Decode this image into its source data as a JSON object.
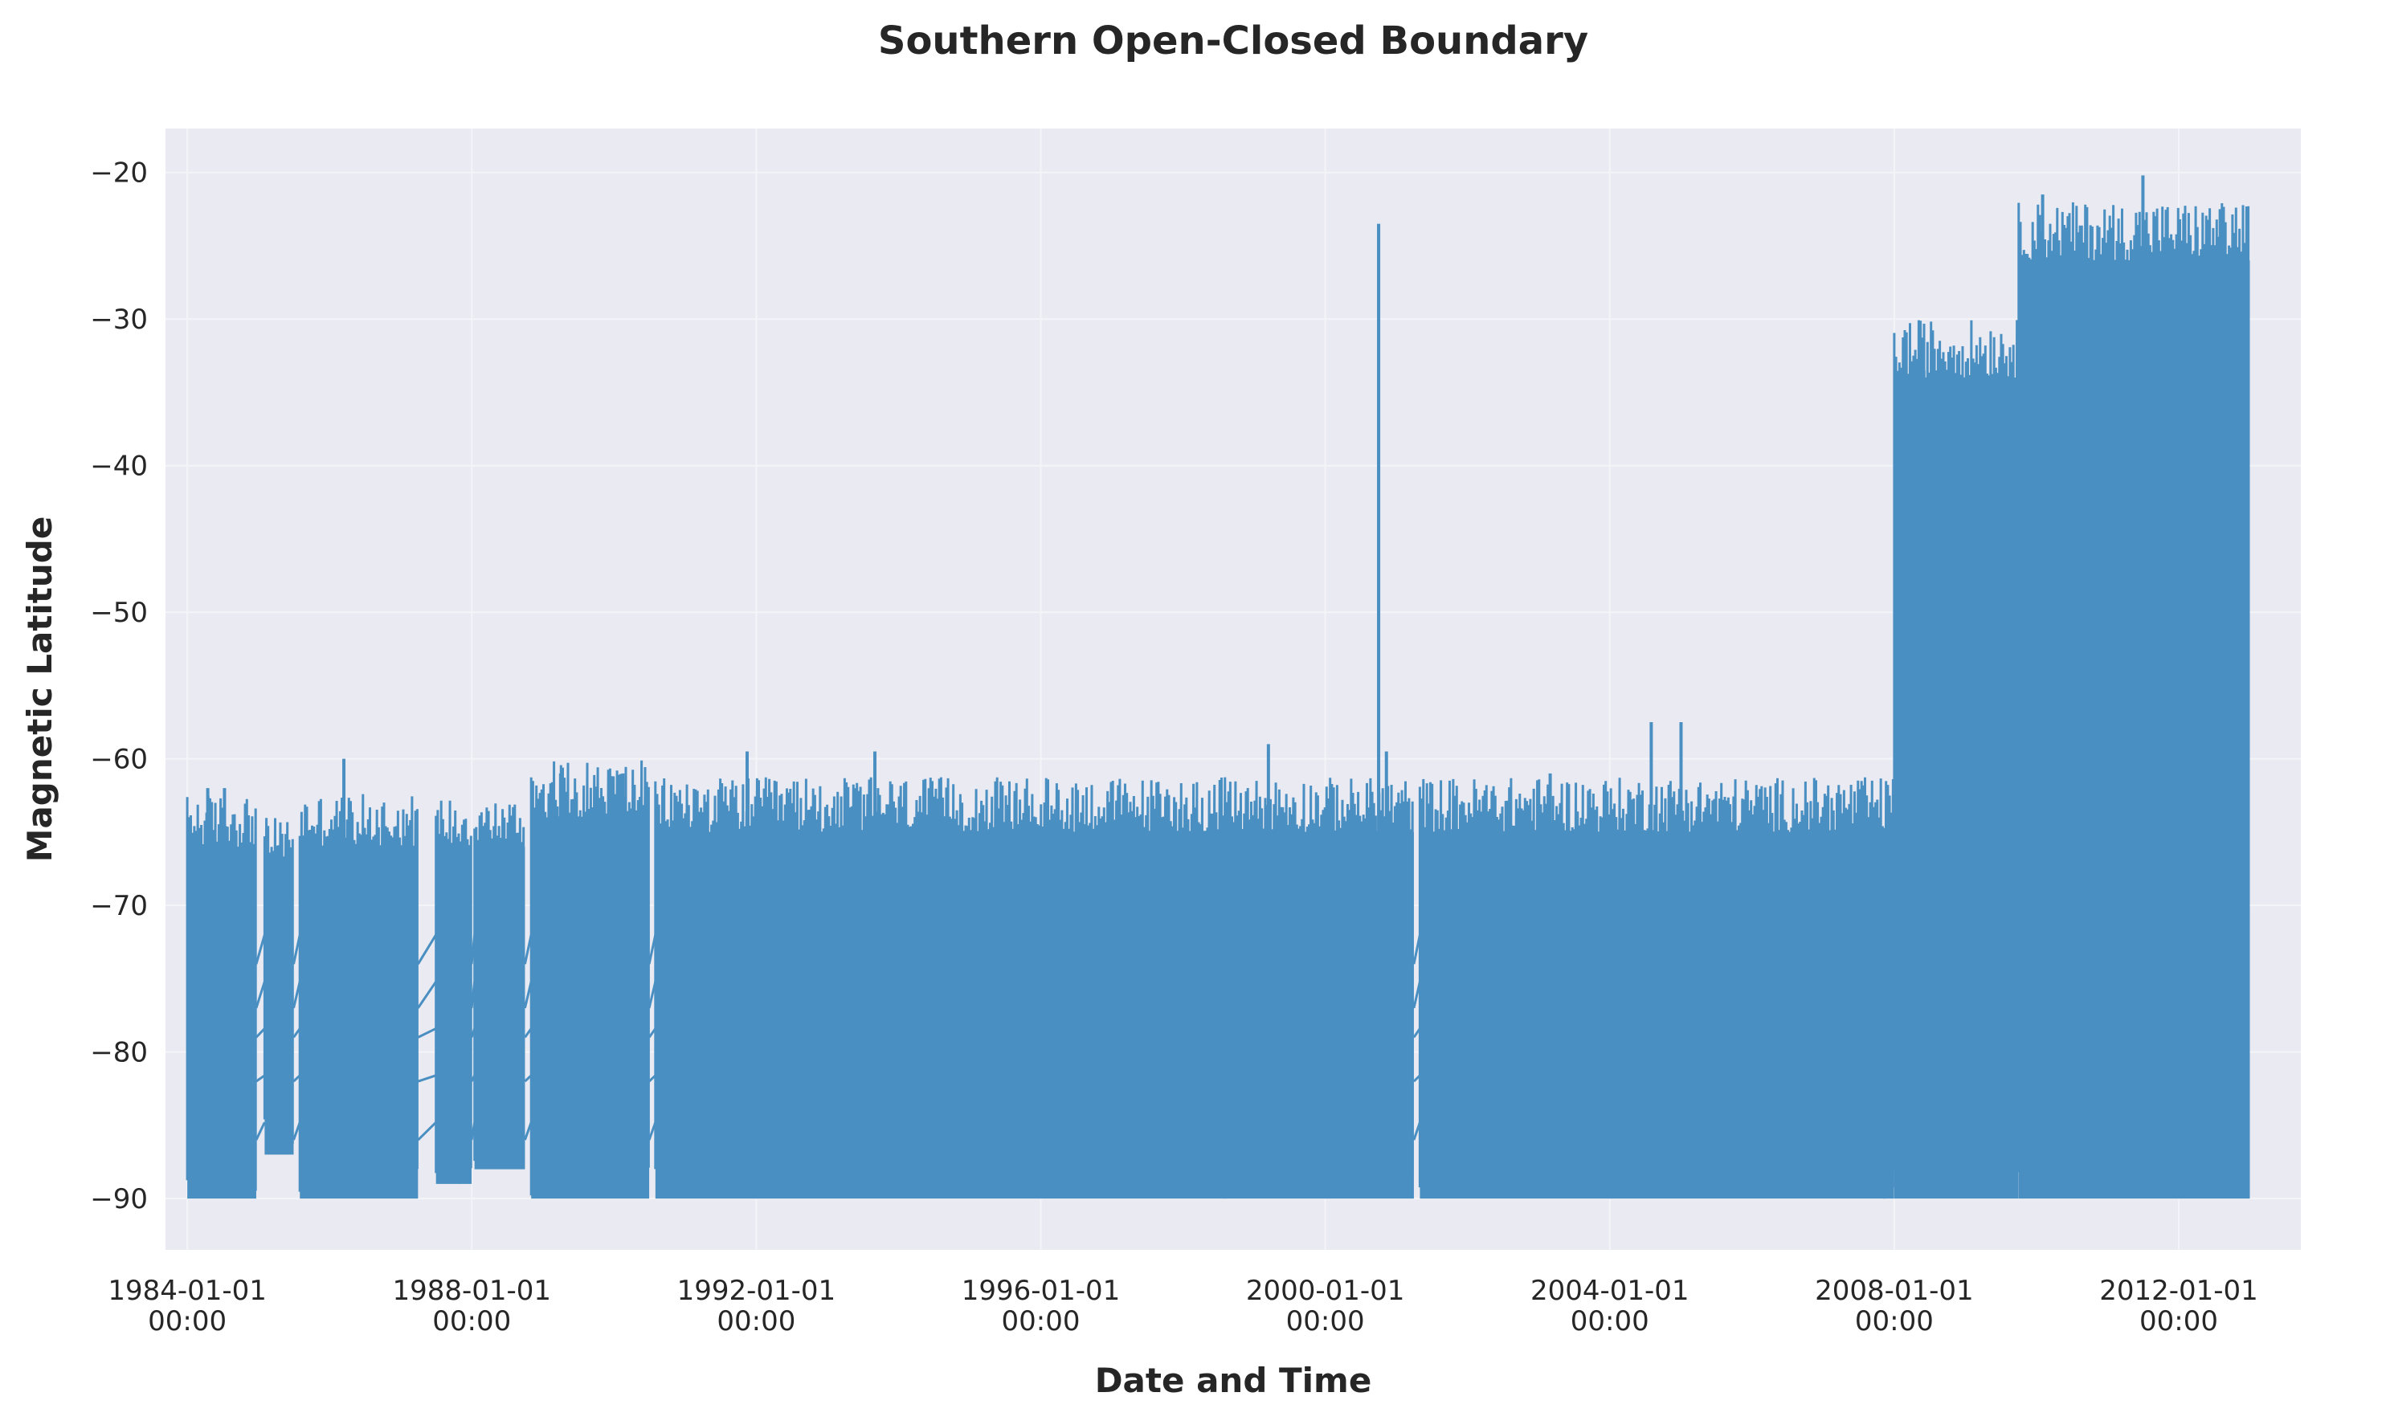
{
  "chart_data": {
    "type": "line",
    "title": "Southern Open-Closed Boundary",
    "xlabel": "Date and Time",
    "ylabel": "Magnetic Latitude",
    "x_type": "date",
    "xlim": [
      "1983-09-11",
      "2013-09-19"
    ],
    "ylim": [
      -93.5,
      -17
    ],
    "x_ticks": [
      {
        "date": "1984-01-01",
        "label_line1": "1984-01-01",
        "label_line2": "00:00"
      },
      {
        "date": "1988-01-01",
        "label_line1": "1988-01-01",
        "label_line2": "00:00"
      },
      {
        "date": "1992-01-01",
        "label_line1": "1992-01-01",
        "label_line2": "00:00"
      },
      {
        "date": "1996-01-01",
        "label_line1": "1996-01-01",
        "label_line2": "00:00"
      },
      {
        "date": "2000-01-01",
        "label_line1": "2000-01-01",
        "label_line2": "00:00"
      },
      {
        "date": "2004-01-01",
        "label_line1": "2004-01-01",
        "label_line2": "00:00"
      },
      {
        "date": "2008-01-01",
        "label_line1": "2008-01-01",
        "label_line2": "00:00"
      },
      {
        "date": "2012-01-01",
        "label_line1": "2012-01-01",
        "label_line2": "00:00"
      }
    ],
    "y_ticks": [
      -20,
      -30,
      -40,
      -50,
      -60,
      -70,
      -80,
      -90
    ],
    "y_tick_labels": [
      "−20",
      "−30",
      "−40",
      "−50",
      "−60",
      "−70",
      "−80",
      "−90"
    ],
    "grid": true,
    "legend": "none",
    "colors": {
      "line": "#4a8fc2",
      "plot_background": "#eaeaf2",
      "grid": "#f4f4f8"
    },
    "series": [
      {
        "segments": [
          {
            "start": "1984-01-01",
            "end": "1984-12-20",
            "low": -90,
            "high": -66,
            "peaks": [
              {
                "date": "1984-04-15",
                "value": -62
              },
              {
                "date": "1984-07-10",
                "value": -62
              }
            ]
          },
          {
            "start": "1985-02-01",
            "end": "1985-06-30",
            "low": -87,
            "high": -67
          },
          {
            "start": "1985-08-01",
            "end": "1987-03-31",
            "low": -90,
            "high": -66,
            "peaks": [
              {
                "date": "1986-03-15",
                "value": -60
              }
            ]
          },
          {
            "start": "1987-07-01",
            "end": "1987-12-31",
            "low": -89,
            "high": -66
          },
          {
            "start": "1988-01-15",
            "end": "1988-09-30",
            "low": -88,
            "high": -66
          },
          {
            "start": "1988-11-01",
            "end": "1990-06-30",
            "low": -90,
            "high": -64,
            "peaks": [
              {
                "date": "1989-04-01",
                "value": -61
              },
              {
                "date": "1990-02-15",
                "value": -61
              }
            ]
          },
          {
            "start": "1990-08-01",
            "end": "2001-03-31",
            "low": -90,
            "high": -65,
            "peaks": [
              {
                "date": "1991-11-15",
                "value": -59.5
              },
              {
                "date": "1993-09-01",
                "value": -59.5
              },
              {
                "date": "1999-03-15",
                "value": -59
              },
              {
                "date": "2000-11-10",
                "value": -59.5
              },
              {
                "date": "2000-10-01",
                "value": -23.5
              }
            ]
          },
          {
            "start": "2001-05-01",
            "end": "2007-12-31",
            "low": -90,
            "high": -65,
            "peaks": [
              {
                "date": "2004-08-01",
                "value": -57.5
              },
              {
                "date": "2005-01-01",
                "value": -57.5
              },
              {
                "date": "2003-03-01",
                "value": -61
              }
            ]
          },
          {
            "start": "2008-01-01",
            "end": "2009-09-30",
            "low": -90,
            "high": -34,
            "peaks": [
              {
                "date": "2008-06-01",
                "value": -33.5
              }
            ]
          },
          {
            "start": "2009-10-01",
            "end": "2012-12-31",
            "low": -90,
            "high": -26,
            "peaks": [
              {
                "date": "2010-02-01",
                "value": -21.5
              },
              {
                "date": "2011-07-01",
                "value": -20.2
              },
              {
                "date": "2012-08-01",
                "value": -22.5
              }
            ]
          }
        ]
      }
    ]
  }
}
